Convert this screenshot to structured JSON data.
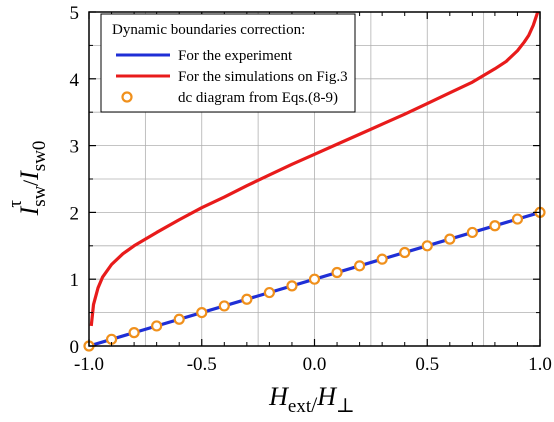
{
  "chart_data": {
    "type": "line",
    "title": "",
    "xlabel_main": "H",
    "xlabel_sub_num": "ext",
    "xlabel_slash": "/",
    "xlabel_main2": "H",
    "xlabel_sub_den": "⊥",
    "ylabel_num_main": "I",
    "ylabel_num_sup": "τ",
    "ylabel_num_sub": "sw",
    "ylabel_slash": "/",
    "ylabel_den_main": "I",
    "ylabel_den_sub": "sw0",
    "xlim": [
      -1.0,
      1.0
    ],
    "ylim": [
      0,
      5
    ],
    "xticks": [
      -1.0,
      -0.5,
      0.0,
      0.5,
      1.0
    ],
    "xtick_labels": [
      "-1.0",
      "-0.5",
      "0.0",
      "0.5",
      "1.0"
    ],
    "yticks": [
      0,
      1,
      2,
      3,
      4,
      5
    ],
    "ytick_labels": [
      "0",
      "1",
      "2",
      "3",
      "4",
      "5"
    ],
    "grid": true,
    "legend_title": "Dynamic boundaries correction:",
    "legend_placement": "top-left",
    "series": [
      {
        "name": "For the experiment",
        "style": "line",
        "color": "#1f2fd6",
        "x": [
          -1.0,
          1.0
        ],
        "y": [
          0.0,
          2.0
        ]
      },
      {
        "name": "For the simulations on Fig.3",
        "style": "line",
        "color": "#e81b1b",
        "x": [
          -0.99,
          -0.98,
          -0.96,
          -0.94,
          -0.9,
          -0.85,
          -0.8,
          -0.7,
          -0.6,
          -0.5,
          -0.4,
          -0.3,
          -0.2,
          -0.1,
          0.0,
          0.1,
          0.2,
          0.3,
          0.4,
          0.5,
          0.6,
          0.7,
          0.8,
          0.85,
          0.9,
          0.93,
          0.95,
          0.97,
          0.98,
          0.99,
          1.0
        ],
        "y": [
          0.3,
          0.62,
          0.87,
          1.03,
          1.22,
          1.38,
          1.5,
          1.7,
          1.89,
          2.07,
          2.23,
          2.4,
          2.56,
          2.72,
          2.87,
          3.02,
          3.17,
          3.32,
          3.47,
          3.63,
          3.79,
          3.95,
          4.15,
          4.26,
          4.42,
          4.55,
          4.65,
          4.8,
          4.9,
          5.0,
          5.15
        ]
      },
      {
        "name": "dc diagram from Eqs.(8-9)",
        "style": "markers",
        "color": "#f0901c",
        "x": [
          -1.0,
          -0.9,
          -0.8,
          -0.7,
          -0.6,
          -0.5,
          -0.4,
          -0.3,
          -0.2,
          -0.1,
          0.0,
          0.1,
          0.2,
          0.3,
          0.4,
          0.5,
          0.6,
          0.7,
          0.8,
          0.9,
          1.0
        ],
        "y": [
          0.0,
          0.1,
          0.2,
          0.3,
          0.4,
          0.5,
          0.6,
          0.7,
          0.8,
          0.9,
          1.0,
          1.1,
          1.2,
          1.3,
          1.4,
          1.5,
          1.6,
          1.7,
          1.8,
          1.9,
          2.0
        ]
      }
    ]
  }
}
